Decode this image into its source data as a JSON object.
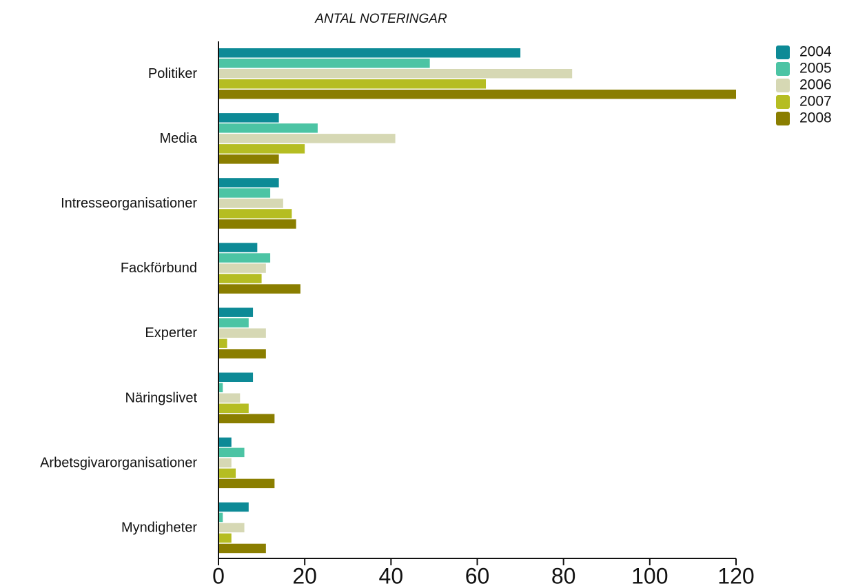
{
  "chart_data": {
    "type": "hbar",
    "title": "ANTAL NOTERINGAR",
    "categories": [
      "Politiker",
      "Media",
      "Intresseorganisationer",
      "Fackförbund",
      "Experter",
      "Näringslivet",
      "Arbetsgivarorganisationer",
      "Myndigheter"
    ],
    "series": [
      {
        "name": "2004",
        "color": "#0d8a96",
        "values": [
          70,
          14,
          14,
          9,
          8,
          8,
          3,
          7
        ]
      },
      {
        "name": "2005",
        "color": "#4cc4a4",
        "values": [
          49,
          23,
          12,
          12,
          7,
          1,
          6,
          1
        ]
      },
      {
        "name": "2006",
        "color": "#d6d8b4",
        "values": [
          82,
          41,
          15,
          11,
          11,
          5,
          3,
          6
        ]
      },
      {
        "name": "2007",
        "color": "#b5bd22",
        "values": [
          62,
          20,
          17,
          10,
          2,
          7,
          4,
          3
        ]
      },
      {
        "name": "2008",
        "color": "#8a7e00",
        "values": [
          120,
          14,
          18,
          19,
          11,
          13,
          13,
          11
        ]
      }
    ],
    "xlim": [
      0,
      120
    ],
    "xticks": [
      0,
      20,
      40,
      60,
      80,
      100,
      120
    ],
    "legend": "right"
  }
}
